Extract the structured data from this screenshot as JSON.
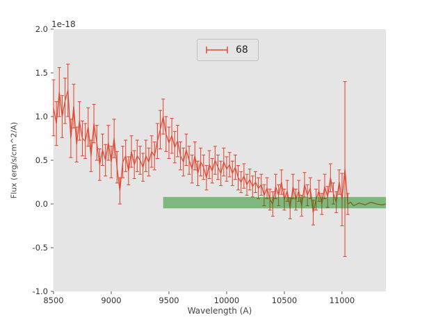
{
  "figure": {
    "offset_label": "1e-18",
    "xlabel": "Wavelength (A)",
    "ylabel": "Flux (erg/s/cm^2/A)"
  },
  "legend": {
    "label": "68"
  },
  "colors": {
    "line": "#E24A33",
    "band": "green",
    "band_alpha": 0.45,
    "axes_bg": "#E5E5E5",
    "fig_bg": "#FFFFFF",
    "tick": "#555555",
    "tick_label": "#333333"
  },
  "chart_data": {
    "type": "line",
    "title": "",
    "xlabel": "Wavelength (A)",
    "ylabel": "Flux (erg/s/cm^2/A)",
    "y_offset_factor": "1e-18",
    "xlim": [
      8500,
      11380
    ],
    "ylim": [
      -1.0,
      2.0
    ],
    "xticks": [
      8500,
      9000,
      9500,
      10000,
      10500,
      11000
    ],
    "yticks": [
      -1.0,
      -0.5,
      0.0,
      0.5,
      1.0,
      1.5,
      2.0
    ],
    "grid": false,
    "legend": {
      "position": "upper center",
      "entries": [
        "68"
      ]
    },
    "band": {
      "x0": 9450,
      "x1": 11380,
      "y0": -0.05,
      "y1": 0.08,
      "color": "green",
      "alpha": 0.45
    },
    "series": [
      {
        "name": "68",
        "style": "errorbar",
        "x": [
          8500,
          8525,
          8550,
          8575,
          8600,
          8625,
          8650,
          8675,
          8700,
          8725,
          8750,
          8775,
          8800,
          8825,
          8850,
          8875,
          8900,
          8925,
          8950,
          8975,
          9000,
          9025,
          9050,
          9075,
          9100,
          9125,
          9150,
          9175,
          9200,
          9225,
          9250,
          9275,
          9300,
          9325,
          9350,
          9375,
          9400,
          9425,
          9450,
          9475,
          9500,
          9525,
          9550,
          9575,
          9600,
          9625,
          9650,
          9675,
          9700,
          9725,
          9750,
          9775,
          9800,
          9825,
          9850,
          9875,
          9900,
          9925,
          9950,
          9975,
          10000,
          10025,
          10050,
          10075,
          10100,
          10125,
          10150,
          10175,
          10200,
          10225,
          10250,
          10275,
          10300,
          10325,
          10350,
          10375,
          10400,
          10425,
          10450,
          10475,
          10500,
          10525,
          10550,
          10575,
          10600,
          10625,
          10650,
          10675,
          10700,
          10725,
          10750,
          10775,
          10800,
          10825,
          10850,
          10875,
          10900,
          10925,
          10950,
          10975,
          11000,
          11025,
          11050,
          11075,
          11100,
          11150,
          11200,
          11250,
          11300,
          11350,
          11380
        ],
        "y": [
          1.1,
          0.92,
          1.28,
          1.0,
          1.18,
          1.3,
          0.75,
          1.12,
          0.68,
          0.95,
          0.75,
          0.72,
          0.88,
          0.55,
          0.92,
          0.7,
          0.45,
          0.62,
          0.5,
          0.7,
          0.48,
          0.75,
          0.42,
          0.15,
          0.48,
          0.55,
          0.38,
          0.6,
          0.45,
          0.55,
          0.5,
          0.42,
          0.55,
          0.48,
          0.6,
          0.55,
          0.72,
          0.85,
          1.0,
          0.8,
          0.7,
          0.78,
          0.65,
          0.72,
          0.55,
          0.48,
          0.62,
          0.5,
          0.4,
          0.55,
          0.35,
          0.48,
          0.42,
          0.3,
          0.45,
          0.38,
          0.5,
          0.42,
          0.35,
          0.48,
          0.4,
          0.45,
          0.35,
          0.42,
          0.3,
          0.25,
          0.32,
          0.22,
          0.28,
          0.2,
          0.25,
          0.18,
          0.22,
          0.1,
          0.18,
          0.05,
          0.0,
          0.2,
          0.1,
          0.25,
          0.05,
          0.15,
          -0.05,
          0.2,
          0.05,
          0.15,
          -0.02,
          0.22,
          0.1,
          0.18,
          -0.1,
          0.05,
          0.15,
          0.0,
          0.2,
          0.08,
          0.3,
          0.12,
          0.02,
          0.25,
          0.05,
          0.4,
          0.0,
          0.02,
          -0.02,
          0.01,
          -0.01,
          0.02,
          0.0,
          -0.01,
          0.0
        ],
        "yerr": [
          0.32,
          0.25,
          0.28,
          0.24,
          0.26,
          0.3,
          0.22,
          0.25,
          0.2,
          0.22,
          0.2,
          0.2,
          0.22,
          0.18,
          0.22,
          0.2,
          0.18,
          0.18,
          0.18,
          0.2,
          0.18,
          0.22,
          0.18,
          0.15,
          0.18,
          0.18,
          0.16,
          0.18,
          0.16,
          0.18,
          0.16,
          0.16,
          0.18,
          0.16,
          0.18,
          0.16,
          0.2,
          0.22,
          0.2,
          0.2,
          0.18,
          0.2,
          0.18,
          0.18,
          0.16,
          0.16,
          0.18,
          0.16,
          0.16,
          0.16,
          0.14,
          0.16,
          0.14,
          0.14,
          0.16,
          0.14,
          0.16,
          0.14,
          0.14,
          0.16,
          0.14,
          0.14,
          0.14,
          0.14,
          0.14,
          0.12,
          0.14,
          0.12,
          0.12,
          0.12,
          0.12,
          0.12,
          0.12,
          0.12,
          0.12,
          0.12,
          0.14,
          0.14,
          0.12,
          0.14,
          0.12,
          0.12,
          0.12,
          0.14,
          0.12,
          0.12,
          0.12,
          0.14,
          0.12,
          0.12,
          0.14,
          0.12,
          0.12,
          0.12,
          0.14,
          0.12,
          0.16,
          0.12,
          0.12,
          0.14,
          0.3,
          1.0,
          0.12,
          0,
          0,
          0,
          0,
          0,
          0,
          0,
          0
        ]
      }
    ]
  }
}
